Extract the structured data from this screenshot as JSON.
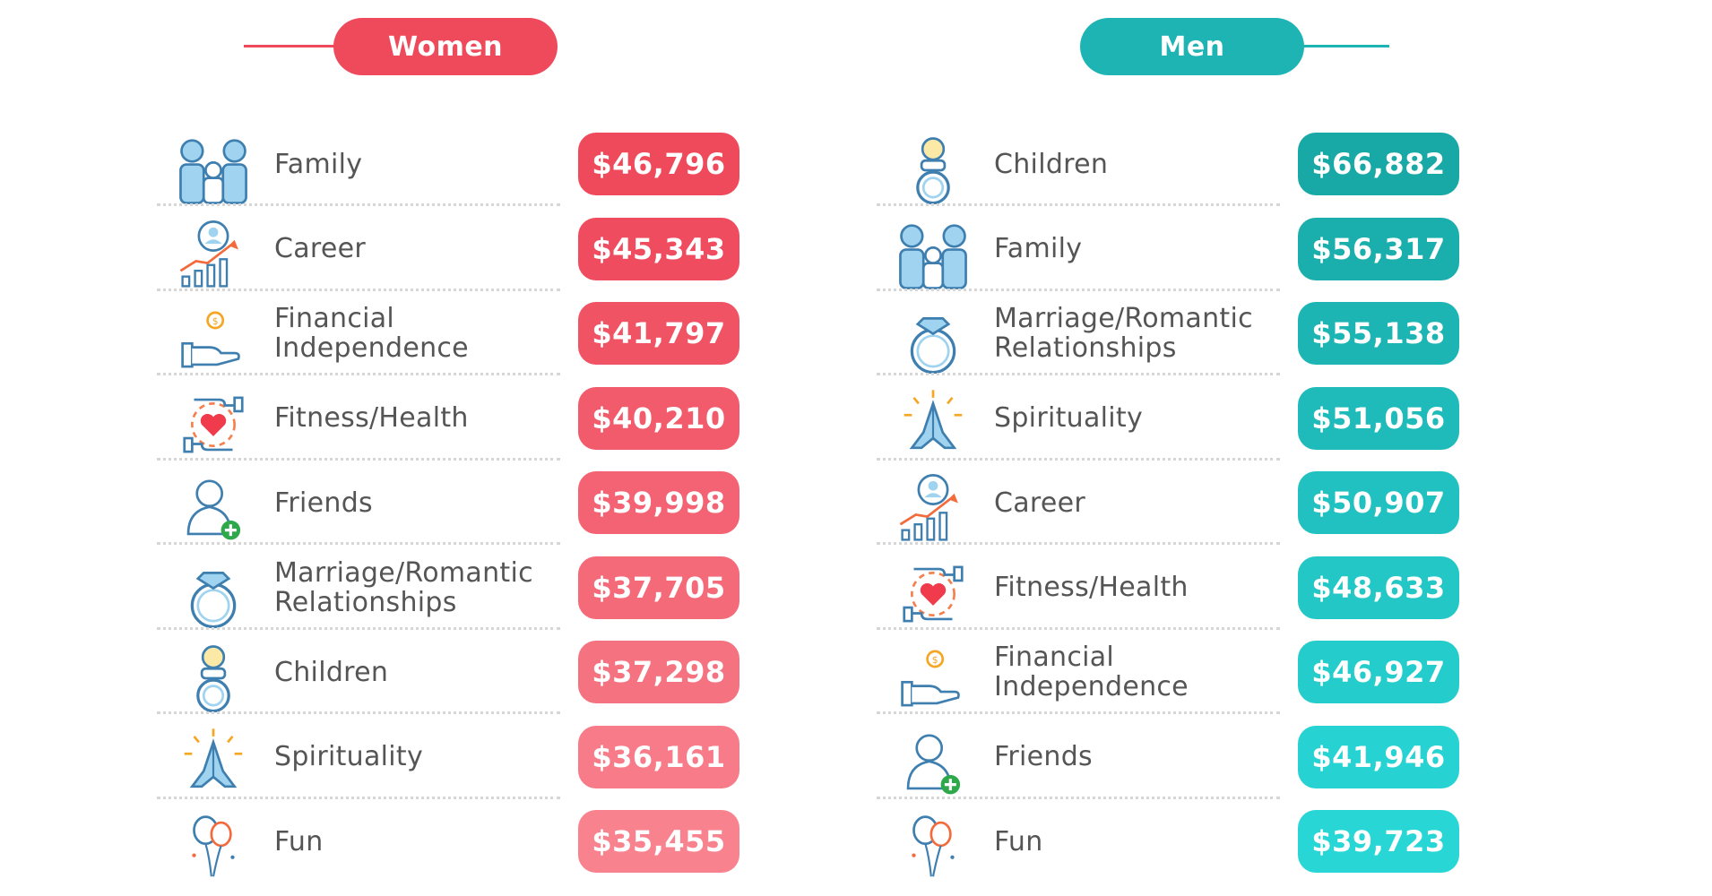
{
  "colors": {
    "women_accent": "#ef4a5c",
    "men_accent": "#1eb4b4"
  },
  "chart_data": [
    {
      "type": "table",
      "title": "Women",
      "columns": [
        "category",
        "value"
      ],
      "rows": [
        {
          "label": "Family",
          "value": "$46,796",
          "icon": "family-icon",
          "color": "#ef4a5c"
        },
        {
          "label": "Career",
          "value": "$45,343",
          "icon": "career-icon",
          "color": "#ef4d5f"
        },
        {
          "label": "Financial\nIndependence",
          "value": "$41,797",
          "icon": "financial-independence-icon",
          "color": "#f05364"
        },
        {
          "label": "Fitness/Health",
          "value": "$40,210",
          "icon": "fitness-health-icon",
          "color": "#f25b6b"
        },
        {
          "label": "Friends",
          "value": "$39,998",
          "icon": "friends-icon",
          "color": "#f36373"
        },
        {
          "label": "Marriage/Romantic\nRelationships",
          "value": "$37,705",
          "icon": "marriage-ring-icon",
          "color": "#f46a79"
        },
        {
          "label": "Children",
          "value": "$37,298",
          "icon": "children-pacifier-icon",
          "color": "#f57280"
        },
        {
          "label": "Spirituality",
          "value": "$36,161",
          "icon": "spirituality-icon",
          "color": "#f77b88"
        },
        {
          "label": "Fun",
          "value": "$35,455",
          "icon": "fun-balloons-icon",
          "color": "#f8838f"
        }
      ]
    },
    {
      "type": "table",
      "title": "Men",
      "columns": [
        "category",
        "value"
      ],
      "rows": [
        {
          "label": "Children",
          "value": "$66,882",
          "icon": "children-pacifier-icon",
          "color": "#18a9a6"
        },
        {
          "label": "Family",
          "value": "$56,317",
          "icon": "family-icon",
          "color": "#1aafac"
        },
        {
          "label": "Marriage/Romantic\nRelationships",
          "value": "$55,138",
          "icon": "marriage-ring-icon",
          "color": "#1cb5b3"
        },
        {
          "label": "Spirituality",
          "value": "$51,056",
          "icon": "spirituality-icon",
          "color": "#1ebbba"
        },
        {
          "label": "Career",
          "value": "$50,907",
          "icon": "career-icon",
          "color": "#20c1c0"
        },
        {
          "label": "Fitness/Health",
          "value": "$48,633",
          "icon": "fitness-health-icon",
          "color": "#22c7c6"
        },
        {
          "label": "Financial\nIndependence",
          "value": "$46,927",
          "icon": "financial-independence-icon",
          "color": "#24cdcc"
        },
        {
          "label": "Friends",
          "value": "$41,946",
          "icon": "friends-icon",
          "color": "#26d2d2"
        },
        {
          "label": "Fun",
          "value": "$39,723",
          "icon": "fun-balloons-icon",
          "color": "#28d6d6"
        }
      ]
    }
  ],
  "headers": {
    "women": "Women",
    "men": "Men"
  }
}
